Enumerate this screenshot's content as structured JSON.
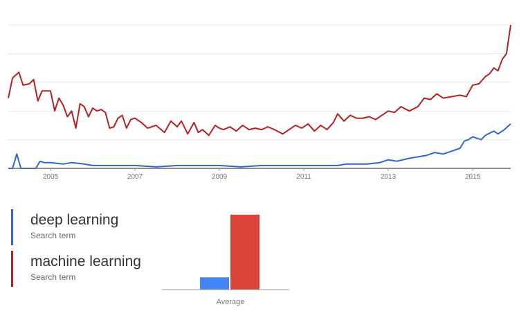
{
  "chart_data": [
    {
      "type": "line",
      "title": "",
      "xlabel": "",
      "ylabel": "",
      "x_tick_labels": [
        "2005",
        "2007",
        "2009",
        "2011",
        "2013",
        "2015"
      ],
      "xlim": [
        2004.0,
        2015.9
      ],
      "ylim": [
        0,
        100
      ],
      "grid": true,
      "series": [
        {
          "name": "machine learning",
          "color": "#B22222",
          "x": [
            2004.0,
            2004.1,
            2004.25,
            2004.35,
            2004.5,
            2004.6,
            2004.7,
            2004.8,
            2004.9,
            2005.0,
            2005.1,
            2005.2,
            2005.3,
            2005.4,
            2005.5,
            2005.6,
            2005.7,
            2005.8,
            2005.9,
            2006.0,
            2006.1,
            2006.2,
            2006.3,
            2006.4,
            2006.5,
            2006.6,
            2006.7,
            2006.8,
            2006.9,
            2007.0,
            2007.15,
            2007.3,
            2007.5,
            2007.7,
            2007.85,
            2008.0,
            2008.1,
            2008.25,
            2008.4,
            2008.5,
            2008.6,
            2008.75,
            2008.9,
            2009.0,
            2009.1,
            2009.25,
            2009.4,
            2009.55,
            2009.7,
            2009.85,
            2010.0,
            2010.15,
            2010.3,
            2010.5,
            2010.65,
            2010.8,
            2010.95,
            2011.1,
            2011.25,
            2011.4,
            2011.55,
            2011.7,
            2011.8,
            2011.95,
            2012.1,
            2012.25,
            2012.4,
            2012.55,
            2012.7,
            2012.85,
            2013.0,
            2013.15,
            2013.3,
            2013.5,
            2013.7,
            2013.85,
            2014.0,
            2014.15,
            2014.3,
            2014.5,
            2014.7,
            2014.85,
            2015.0,
            2015.15,
            2015.3,
            2015.4,
            2015.5,
            2015.6,
            2015.7,
            2015.8,
            2015.9
          ],
          "values": [
            49,
            63,
            67,
            58,
            59,
            62,
            47,
            54,
            54,
            54,
            40,
            49,
            44,
            36,
            40,
            28,
            45,
            43,
            36,
            42,
            40,
            41,
            39,
            28,
            29,
            35,
            37,
            28,
            34,
            35,
            32,
            28,
            30,
            25,
            33,
            29,
            33,
            24,
            32,
            25,
            27,
            23,
            30,
            28,
            27,
            29,
            26,
            30,
            27,
            28,
            27,
            29,
            27,
            24,
            27,
            30,
            28,
            31,
            26,
            30,
            27,
            32,
            38,
            33,
            37,
            35,
            35,
            36,
            34,
            37,
            40,
            39,
            43,
            40,
            43,
            49,
            48,
            52,
            49,
            50,
            51,
            50,
            58,
            59,
            64,
            66,
            70,
            68,
            76,
            80,
            100
          ]
        },
        {
          "name": "deep learning",
          "color": "#3366CC",
          "x": [
            2004.0,
            2004.1,
            2004.15,
            2004.2,
            2004.3,
            2004.5,
            2004.65,
            2004.75,
            2004.85,
            2005.0,
            2005.3,
            2005.5,
            2005.8,
            2006.0,
            2006.5,
            2007.0,
            2007.5,
            2008.0,
            2008.5,
            2009.0,
            2009.5,
            2010.0,
            2010.5,
            2011.0,
            2011.5,
            2011.8,
            2012.0,
            2012.5,
            2012.8,
            2013.0,
            2013.2,
            2013.5,
            2013.7,
            2013.9,
            2014.1,
            2014.3,
            2014.5,
            2014.7,
            2014.8,
            2014.9,
            2015.0,
            2015.2,
            2015.3,
            2015.5,
            2015.6,
            2015.75,
            2015.9
          ],
          "values": [
            0,
            0,
            5,
            10,
            0,
            0,
            0,
            5,
            4,
            4,
            3,
            4,
            3,
            2,
            2,
            2,
            1,
            2,
            2,
            2,
            1,
            2,
            2,
            2,
            2,
            2,
            3,
            3,
            4,
            6,
            5,
            7,
            8,
            9,
            11,
            10,
            12,
            14,
            19,
            20,
            22,
            20,
            23,
            26,
            24,
            27,
            31
          ]
        }
      ]
    },
    {
      "type": "bar",
      "title": "",
      "categories": [
        "Average"
      ],
      "xlabel": "",
      "ylabel": "",
      "ylim": [
        0,
        60
      ],
      "series": [
        {
          "name": "deep learning",
          "color": "#4285F4",
          "values": [
            9
          ]
        },
        {
          "name": "machine learning",
          "color": "#DB4437",
          "values": [
            55
          ]
        }
      ]
    }
  ],
  "legend": [
    {
      "term": "deep learning",
      "subtitle": "Search term",
      "color": "#3366CC"
    },
    {
      "term": "machine learning",
      "subtitle": "Search term",
      "color": "#B22222"
    }
  ],
  "colors": {
    "grid": "#e6e6e6",
    "axis": "#666666"
  }
}
